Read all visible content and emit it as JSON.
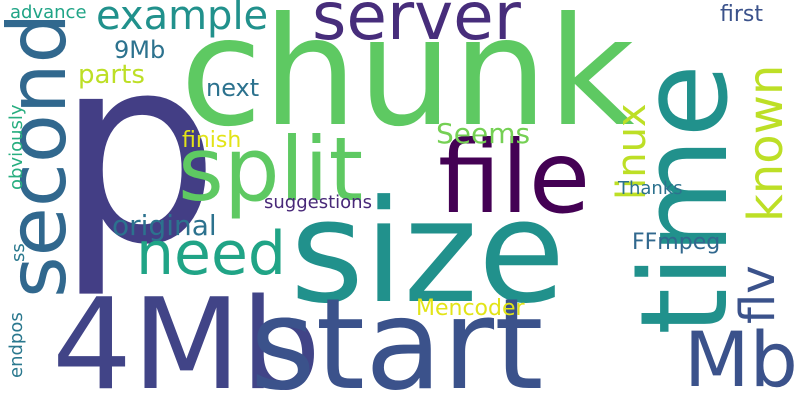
{
  "background": "#ffffff",
  "words": [
    {
      "text": "p",
      "color": "#433e85"
    },
    {
      "text": "chunk",
      "color": "#5ec962"
    },
    {
      "text": "size",
      "color": "#21918c"
    },
    {
      "text": "time",
      "color": "#21918c"
    },
    {
      "text": "4Mb",
      "color": "#414487"
    },
    {
      "text": "start",
      "color": "#3b528b"
    },
    {
      "text": "file",
      "color": "#440154"
    },
    {
      "text": "split",
      "color": "#5ec962"
    },
    {
      "text": "second",
      "color": "#31688e"
    },
    {
      "text": "server",
      "color": "#472d7b"
    },
    {
      "text": "need",
      "color": "#20a486"
    },
    {
      "text": "Mb",
      "color": "#3b528b"
    },
    {
      "text": "example",
      "color": "#21918c"
    },
    {
      "text": "known",
      "color": "#bddf26"
    },
    {
      "text": "flv",
      "color": "#3b528b"
    },
    {
      "text": "linux",
      "color": "#bddf26"
    },
    {
      "text": "original",
      "color": "#2c728e"
    },
    {
      "text": "Seems",
      "color": "#75d054"
    },
    {
      "text": "parts",
      "color": "#bddf26"
    },
    {
      "text": "9Mb",
      "color": "#2c728e"
    },
    {
      "text": "next",
      "color": "#2c728e"
    },
    {
      "text": "first",
      "color": "#3b528b"
    },
    {
      "text": "finish",
      "color": "#e2e418"
    },
    {
      "text": "Thanks",
      "color": "#2c728e"
    },
    {
      "text": "FFmpeg",
      "color": "#31688e"
    },
    {
      "text": "Mencoder",
      "color": "#e2e418"
    },
    {
      "text": "suggestions",
      "color": "#482878"
    },
    {
      "text": "advance",
      "color": "#20a486"
    },
    {
      "text": "obviously",
      "color": "#28ae80"
    },
    {
      "text": "ss",
      "color": "#2a788e"
    },
    {
      "text": "endpos",
      "color": "#2a788e"
    }
  ]
}
